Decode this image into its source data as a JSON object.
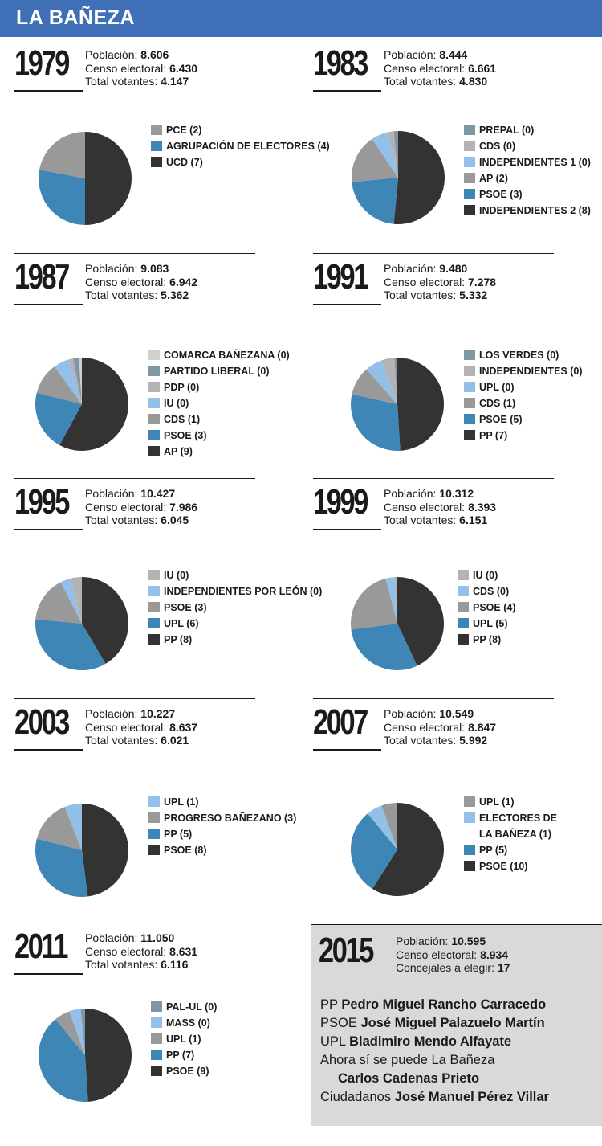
{
  "header": {
    "title": "LA BAÑEZA"
  },
  "labels": {
    "poblacion": "Población:",
    "censo": "Censo electoral:",
    "votantes": "Total votantes:",
    "concejales": "Concejales a elegir:"
  },
  "colors": {
    "darkest": "#333333",
    "blue": "#3e86b5",
    "gray": "#999999",
    "lightblue": "#92c0e8",
    "lightgray": "#b3b3b3",
    "steel": "#7f97a3",
    "palegray": "#d0d0d0"
  },
  "elections": [
    {
      "year": "1979",
      "poblacion": "8.606",
      "censo": "6.430",
      "votantes": "4.147"
    },
    {
      "year": "1983",
      "poblacion": "8.444",
      "censo": "6.661",
      "votantes": "4.830"
    },
    {
      "year": "1987",
      "poblacion": "9.083",
      "censo": "6.942",
      "votantes": "5.362"
    },
    {
      "year": "1991",
      "poblacion": "9.480",
      "censo": "7.278",
      "votantes": "5.332"
    },
    {
      "year": "1995",
      "poblacion": "10.427",
      "censo": "7.986",
      "votantes": "6.045"
    },
    {
      "year": "1999",
      "poblacion": "10.312",
      "censo": "8.393",
      "votantes": "6.151"
    },
    {
      "year": "2003",
      "poblacion": "10.227",
      "censo": "8.637",
      "votantes": "6.021"
    },
    {
      "year": "2007",
      "poblacion": "10.549",
      "censo": "8.847",
      "votantes": "5.992"
    },
    {
      "year": "2011",
      "poblacion": "11.050",
      "censo": "8.631",
      "votantes": "6.116"
    }
  ],
  "chart_data": [
    {
      "type": "pie",
      "title": "1979",
      "slices": [
        {
          "label": "PCE (2)",
          "value": 22,
          "color": "#999999"
        },
        {
          "label": "AGRUPACIÓN DE ELECTORES (4)",
          "value": 28,
          "color": "#3e86b5"
        },
        {
          "label": "UCD (7)",
          "value": 50,
          "color": "#333333"
        }
      ]
    },
    {
      "type": "pie",
      "title": "1983",
      "slices": [
        {
          "label": "PREPAL (0)",
          "value": 1.5,
          "color": "#7f97a3"
        },
        {
          "label": "CDS (0)",
          "value": 2,
          "color": "#b3b3b3"
        },
        {
          "label": "INDEPENDIENTES 1 (0)",
          "value": 6,
          "color": "#92c0e8"
        },
        {
          "label": "AP (2)",
          "value": 17,
          "color": "#999999"
        },
        {
          "label": "PSOE (3)",
          "value": 22,
          "color": "#3e86b5"
        },
        {
          "label": "INDEPENDIENTES 2 (8)",
          "value": 51.5,
          "color": "#333333"
        }
      ]
    },
    {
      "type": "pie",
      "title": "1987",
      "slices": [
        {
          "label": "COMARCA BAÑEZANA (0)",
          "value": 1,
          "color": "#d0d0d0"
        },
        {
          "label": "PARTIDO LIBERAL (0)",
          "value": 2,
          "color": "#7f97a3"
        },
        {
          "label": "PDP (0)",
          "value": 1.5,
          "color": "#b3b3b3"
        },
        {
          "label": "IU (0)",
          "value": 5.5,
          "color": "#92c0e8"
        },
        {
          "label": "CDS (1)",
          "value": 11,
          "color": "#999999"
        },
        {
          "label": "PSOE (3)",
          "value": 21,
          "color": "#3e86b5"
        },
        {
          "label": "AP (9)",
          "value": 58,
          "color": "#333333"
        }
      ]
    },
    {
      "type": "pie",
      "title": "1991",
      "slices": [
        {
          "label": "LOS VERDES (0)",
          "value": 1,
          "color": "#7f97a3"
        },
        {
          "label": "INDEPENDIENTES (0)",
          "value": 4.5,
          "color": "#b3b3b3"
        },
        {
          "label": "UPL (0)",
          "value": 6,
          "color": "#92c0e8"
        },
        {
          "label": "CDS (1)",
          "value": 10,
          "color": "#999999"
        },
        {
          "label": "PSOE (5)",
          "value": 29.5,
          "color": "#3e86b5"
        },
        {
          "label": "PP (7)",
          "value": 49,
          "color": "#333333"
        }
      ]
    },
    {
      "type": "pie",
      "title": "1995",
      "slices": [
        {
          "label": "IU (0)",
          "value": 4,
          "color": "#b3b3b3"
        },
        {
          "label": "INDEPENDIENTES POR LEÓN (0)",
          "value": 3.5,
          "color": "#92c0e8"
        },
        {
          "label": "PSOE (3)",
          "value": 16,
          "color": "#999999"
        },
        {
          "label": "UPL (6)",
          "value": 35,
          "color": "#3e86b5"
        },
        {
          "label": "PP (8)",
          "value": 41.5,
          "color": "#333333"
        }
      ]
    },
    {
      "type": "pie",
      "title": "1999",
      "slices": [
        {
          "label": "IU (0)",
          "value": 1,
          "color": "#b3b3b3"
        },
        {
          "label": "CDS (0)",
          "value": 3,
          "color": "#92c0e8"
        },
        {
          "label": "PSOE (4)",
          "value": 23,
          "color": "#999999"
        },
        {
          "label": "UPL (5)",
          "value": 30,
          "color": "#3e86b5"
        },
        {
          "label": "PP (8)",
          "value": 43,
          "color": "#333333"
        }
      ]
    },
    {
      "type": "pie",
      "title": "2003",
      "slices": [
        {
          "label": "UPL (1)",
          "value": 6,
          "color": "#92c0e8"
        },
        {
          "label": "PROGRESO BAÑEZANO (3)",
          "value": 15,
          "color": "#999999"
        },
        {
          "label": "PP (5)",
          "value": 31,
          "color": "#3e86b5"
        },
        {
          "label": "PSOE (8)",
          "value": 48,
          "color": "#333333"
        }
      ]
    },
    {
      "type": "pie",
      "title": "2007",
      "slices": [
        {
          "label": "UPL (1)",
          "value": 5.5,
          "color": "#999999"
        },
        {
          "label": "ELECTORES DE LA BAÑEZA (1)",
          "value": 5.5,
          "color": "#92c0e8"
        },
        {
          "label": "PP (5)",
          "value": 30,
          "color": "#3e86b5"
        },
        {
          "label": "PSOE (10)",
          "value": 59,
          "color": "#333333"
        }
      ]
    },
    {
      "type": "pie",
      "title": "2011",
      "slices": [
        {
          "label": "PAL-UL (0)",
          "value": 1.5,
          "color": "#7f97a3"
        },
        {
          "label": "MASS (0)",
          "value": 4,
          "color": "#92c0e8"
        },
        {
          "label": "UPL (1)",
          "value": 5.5,
          "color": "#999999"
        },
        {
          "label": "PP (7)",
          "value": 40,
          "color": "#3e86b5"
        },
        {
          "label": "PSOE (9)",
          "value": 49,
          "color": "#333333"
        }
      ]
    }
  ],
  "y2015": {
    "year": "2015",
    "poblacion": "10.595",
    "censo": "8.934",
    "concejales": "17",
    "candidates": [
      {
        "party": "PP",
        "name": "Pedro Miguel Rancho Carracedo"
      },
      {
        "party": "PSOE",
        "name": "José Miguel Palazuelo Martín"
      },
      {
        "party": "UPL",
        "name": "Bladimiro Mendo Alfayate"
      },
      {
        "party": "Ahora sí se puede La Bañeza",
        "name": "Carlos Cadenas Prieto"
      },
      {
        "party": "Ciudadanos",
        "name": "José Manuel Pérez Villar"
      }
    ]
  }
}
